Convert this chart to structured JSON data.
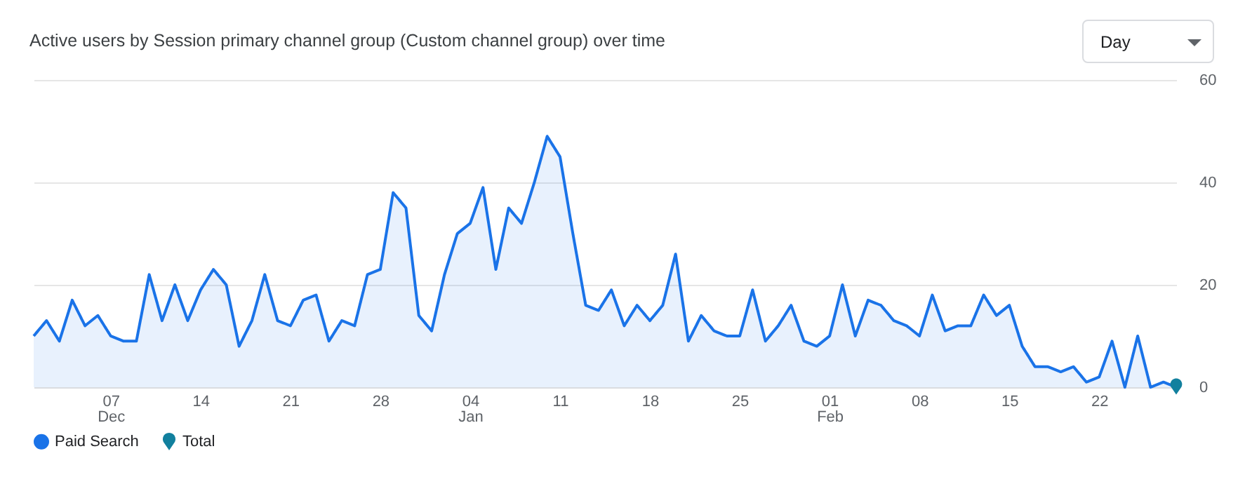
{
  "chart_data": {
    "type": "area",
    "title": "Active users by Session primary channel group (Custom channel group) over time",
    "annotations": [
      "Day"
    ],
    "categories": [
      null,
      null,
      null,
      null,
      null,
      null,
      "07\nDec",
      null,
      null,
      null,
      null,
      null,
      null,
      "14",
      null,
      null,
      null,
      null,
      null,
      null,
      "21",
      null,
      null,
      null,
      null,
      null,
      null,
      "28",
      null,
      null,
      null,
      null,
      null,
      null,
      "04\nJan",
      null,
      null,
      null,
      null,
      null,
      null,
      "11",
      null,
      null,
      null,
      null,
      null,
      null,
      "18",
      null,
      null,
      null,
      null,
      null,
      null,
      "25",
      null,
      null,
      null,
      null,
      null,
      null,
      "01\nFeb",
      null,
      null,
      null,
      null,
      null,
      null,
      "08",
      null,
      null,
      null,
      null,
      null,
      null,
      "15",
      null,
      null,
      null,
      null,
      null,
      null,
      "22",
      null,
      null,
      null,
      null,
      null,
      null
    ],
    "series": [
      {
        "name": "Paid Search",
        "color": "#1a73e8",
        "values": [
          10,
          13,
          9,
          17,
          12,
          14,
          10,
          9,
          9,
          22,
          13,
          20,
          13,
          19,
          23,
          20,
          8,
          13,
          22,
          13,
          12,
          17,
          18,
          9,
          13,
          12,
          22,
          23,
          38,
          35,
          14,
          11,
          22,
          30,
          32,
          39,
          23,
          35,
          32,
          40,
          49,
          45,
          30,
          16,
          15,
          19,
          12,
          16,
          13,
          16,
          26,
          9,
          14,
          11,
          10,
          10,
          19,
          9,
          12,
          16,
          9,
          8,
          10,
          20,
          10,
          17,
          16,
          13,
          12,
          10,
          18,
          11,
          12,
          12,
          18,
          14,
          16,
          8,
          4,
          4,
          3,
          4,
          1,
          2,
          9,
          0,
          10,
          0,
          1,
          0
        ]
      },
      {
        "name": "Total",
        "type": "scatter",
        "color": "#12809e",
        "values": [
          null,
          null,
          null,
          null,
          null,
          null,
          null,
          null,
          null,
          null,
          null,
          null,
          null,
          null,
          null,
          null,
          null,
          null,
          null,
          null,
          null,
          null,
          null,
          null,
          null,
          null,
          null,
          null,
          null,
          null,
          null,
          null,
          null,
          null,
          null,
          null,
          null,
          null,
          null,
          null,
          null,
          null,
          null,
          null,
          null,
          null,
          null,
          null,
          null,
          null,
          null,
          null,
          null,
          null,
          null,
          null,
          null,
          null,
          null,
          null,
          null,
          null,
          null,
          null,
          null,
          null,
          null,
          null,
          null,
          null,
          null,
          null,
          null,
          null,
          null,
          null,
          null,
          null,
          null,
          null,
          null,
          null,
          null,
          null,
          null,
          null,
          null,
          null,
          null,
          0
        ]
      }
    ],
    "ylim": [
      0,
      60
    ],
    "yticks": [
      0,
      20,
      40,
      60
    ],
    "grid": "y",
    "legend": "bottom left"
  }
}
